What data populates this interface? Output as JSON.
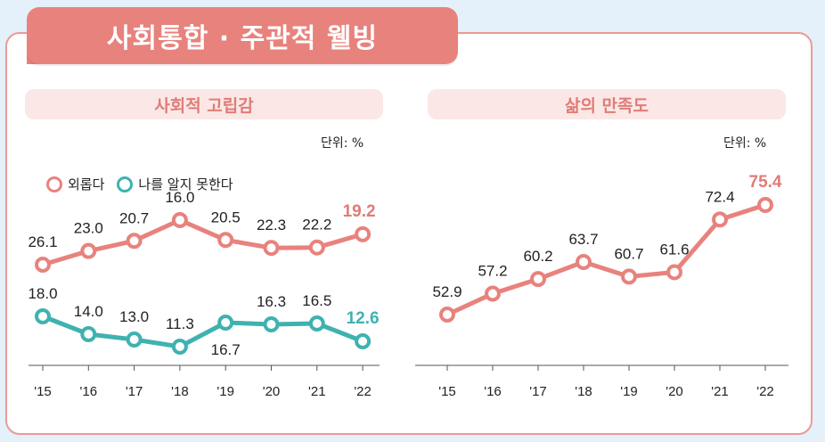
{
  "header": {
    "title": "사회통합 · 주관적 웰빙"
  },
  "colors": {
    "primary": "#e8827d",
    "secondary": "#3fb2b0",
    "subtitle_bg": "#fbe8e6"
  },
  "chart_data": [
    {
      "type": "line",
      "title": "사회적 고립감",
      "unit": "단위: %",
      "categories": [
        "'15",
        "'16",
        "'17",
        "'18",
        "'19",
        "'20",
        "'21",
        "'22"
      ],
      "series": [
        {
          "name": "외롭다",
          "values": [
            26.1,
            23.0,
            20.7,
            16.0,
            20.5,
            22.3,
            22.2,
            19.2
          ],
          "labels": [
            "26.1",
            "23.0",
            "20.7",
            "16.0",
            "20.5",
            "22.3",
            "22.2",
            "19.2"
          ]
        },
        {
          "name": "나를 알지 못한다",
          "values": [
            18.0,
            14.0,
            13.0,
            11.3,
            16.7,
            16.3,
            16.5,
            12.6
          ],
          "labels": [
            "18.0",
            "14.0",
            "13.0",
            "11.3",
            "16.7",
            "16.3",
            "16.5",
            "12.6"
          ]
        }
      ]
    },
    {
      "type": "line",
      "title": "삶의 만족도",
      "unit": "단위: %",
      "categories": [
        "'15",
        "'16",
        "'17",
        "'18",
        "'19",
        "'20",
        "'21",
        "'22"
      ],
      "series": [
        {
          "name": "삶의 만족도",
          "values": [
            52.9,
            57.2,
            60.2,
            63.7,
            60.7,
            61.6,
            72.4,
            75.4
          ],
          "labels": [
            "52.9",
            "57.2",
            "60.2",
            "63.7",
            "60.7",
            "61.6",
            "72.4",
            "75.4"
          ]
        }
      ]
    }
  ]
}
